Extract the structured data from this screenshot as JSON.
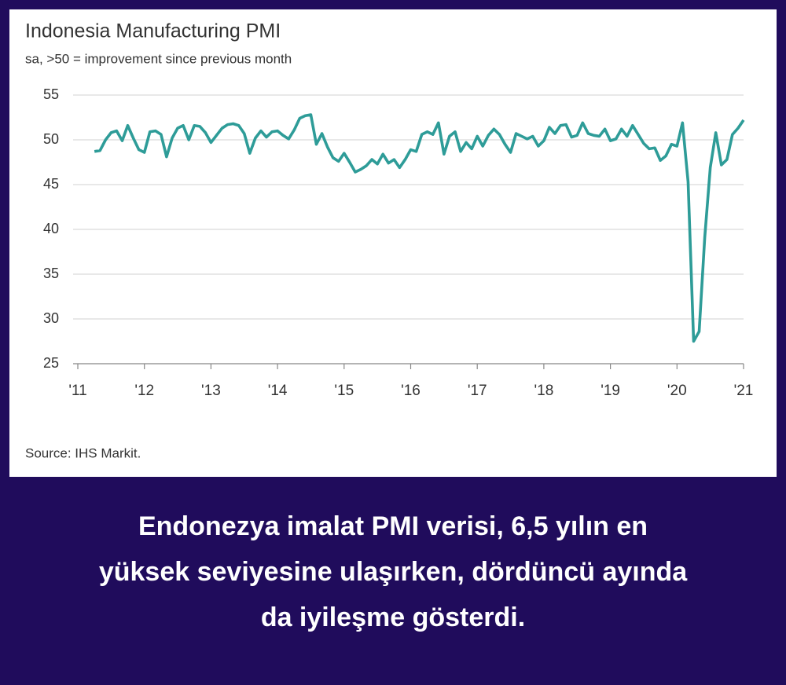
{
  "chart_data": {
    "type": "line",
    "title": "Indonesia Manufacturing PMI",
    "subtitle": "sa, >50 = improvement since previous month",
    "source": "Source: IHS Markit.",
    "x": [
      2011.25,
      2011.333,
      2011.417,
      2011.5,
      2011.583,
      2011.667,
      2011.75,
      2011.833,
      2011.917,
      2012,
      2012.083,
      2012.167,
      2012.25,
      2012.333,
      2012.417,
      2012.5,
      2012.583,
      2012.667,
      2012.75,
      2012.833,
      2012.917,
      2013,
      2013.083,
      2013.167,
      2013.25,
      2013.333,
      2013.417,
      2013.5,
      2013.583,
      2013.667,
      2013.75,
      2013.833,
      2013.917,
      2014,
      2014.083,
      2014.167,
      2014.25,
      2014.333,
      2014.417,
      2014.5,
      2014.583,
      2014.667,
      2014.75,
      2014.833,
      2014.917,
      2015,
      2015.083,
      2015.167,
      2015.25,
      2015.333,
      2015.417,
      2015.5,
      2015.583,
      2015.667,
      2015.75,
      2015.833,
      2015.917,
      2016,
      2016.083,
      2016.167,
      2016.25,
      2016.333,
      2016.417,
      2016.5,
      2016.583,
      2016.667,
      2016.75,
      2016.833,
      2016.917,
      2017,
      2017.083,
      2017.167,
      2017.25,
      2017.333,
      2017.417,
      2017.5,
      2017.583,
      2017.667,
      2017.75,
      2017.833,
      2017.917,
      2018,
      2018.083,
      2018.167,
      2018.25,
      2018.333,
      2018.417,
      2018.5,
      2018.583,
      2018.667,
      2018.75,
      2018.833,
      2018.917,
      2019,
      2019.083,
      2019.167,
      2019.25,
      2019.333,
      2019.417,
      2019.5,
      2019.583,
      2019.667,
      2019.75,
      2019.833,
      2019.917,
      2020,
      2020.083,
      2020.167,
      2020.25,
      2020.333,
      2020.417,
      2020.5,
      2020.583,
      2020.667,
      2020.75,
      2020.833,
      2020.917,
      2021
    ],
    "series": [
      {
        "color": "#2e9c98",
        "values": [
          48.7,
          48.8,
          50.0,
          50.8,
          51.0,
          49.9,
          51.6,
          50.2,
          48.9,
          48.6,
          50.9,
          51.0,
          50.6,
          48.1,
          50.2,
          51.3,
          51.6,
          50.0,
          51.6,
          51.5,
          50.8,
          49.7,
          50.5,
          51.3,
          51.7,
          51.8,
          51.6,
          50.7,
          48.5,
          50.2,
          51.0,
          50.3,
          50.9,
          51.0,
          50.5,
          50.1,
          51.1,
          52.4,
          52.7,
          52.8,
          49.5,
          50.7,
          49.2,
          48.0,
          47.6,
          48.5,
          47.5,
          46.4,
          46.7,
          47.1,
          47.8,
          47.3,
          48.4,
          47.4,
          47.8,
          46.9,
          47.8,
          48.9,
          48.7,
          50.6,
          50.9,
          50.6,
          51.9,
          48.4,
          50.4,
          50.9,
          48.7,
          49.7,
          49.0,
          50.4,
          49.3,
          50.5,
          51.2,
          50.6,
          49.5,
          48.6,
          50.7,
          50.4,
          50.1,
          50.4,
          49.3,
          49.9,
          51.4,
          50.7,
          51.6,
          51.7,
          50.3,
          50.5,
          51.9,
          50.7,
          50.5,
          50.4,
          51.2,
          49.9,
          50.1,
          51.2,
          50.4,
          51.6,
          50.6,
          49.6,
          49.0,
          49.1,
          47.7,
          48.2,
          49.5,
          49.3,
          51.9,
          45.3,
          27.5,
          28.6,
          39.1,
          46.9,
          50.8,
          47.2,
          47.8,
          50.6,
          51.3,
          52.2
        ]
      }
    ],
    "xlim": [
      2011,
      2021
    ],
    "xticks": [
      {
        "value": 2011,
        "label": "'11"
      },
      {
        "value": 2012,
        "label": "'12"
      },
      {
        "value": 2013,
        "label": "'13"
      },
      {
        "value": 2014,
        "label": "'14"
      },
      {
        "value": 2015,
        "label": "'15"
      },
      {
        "value": 2016,
        "label": "'16"
      },
      {
        "value": 2017,
        "label": "'17"
      },
      {
        "value": 2018,
        "label": "'18"
      },
      {
        "value": 2019,
        "label": "'19"
      },
      {
        "value": 2020,
        "label": "'20"
      },
      {
        "value": 2021,
        "label": "'21"
      }
    ],
    "ylim": [
      25,
      55
    ],
    "yticks": [
      25,
      30,
      35,
      40,
      45,
      50,
      55
    ],
    "grid": true
  },
  "caption_lines": [
    "Endonezya imalat PMI verisi, 6,5 yılın en",
    "yüksek seviyesine ulaşırken, dördüncü ayında",
    "da iyileşme gösterdi."
  ]
}
